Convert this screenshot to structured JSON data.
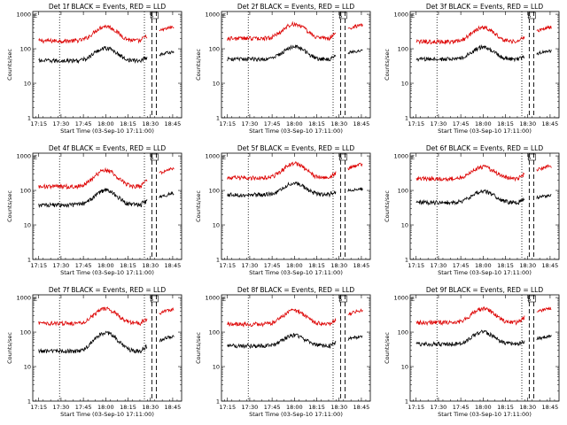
{
  "common": {
    "xlabel": "Start Time (03-Sep-10 17:11:00)",
    "ylabel": "Counts/sec",
    "x_tick_labels": [
      "17:15",
      "17:30",
      "17:45",
      "18:00",
      "18:15",
      "18:30",
      "18:45"
    ],
    "x_tick_minutes": [
      15,
      30,
      45,
      60,
      75,
      90,
      105
    ],
    "y_tick_labels": [
      "1",
      "10",
      "100",
      "1000"
    ],
    "y_tick_values": [
      1,
      10,
      100,
      1000
    ],
    "xlim_minutes": [
      11,
      111
    ],
    "ylim": [
      1,
      1200
    ],
    "y_scale": "log",
    "corner_marks": [
      "E",
      "S"
    ],
    "dotted_lines_minutes": [
      29,
      86
    ],
    "dashed_lines_minutes": [
      91,
      94
    ],
    "colors": {
      "events": "#000000",
      "lld": "#dd0000",
      "axes": "#000000"
    }
  },
  "chart_data": [
    {
      "type": "line",
      "title": "Det 1f BLACK = Events, RED = LLD",
      "series": [
        {
          "key": "lld",
          "color": "#dd0000",
          "base": 170,
          "peak": 450,
          "end": 420
        },
        {
          "key": "events",
          "color": "#000000",
          "base": 45,
          "peak": 105,
          "end": 80
        }
      ]
    },
    {
      "type": "line",
      "title": "Det 2f BLACK = Events, RED = LLD",
      "series": [
        {
          "key": "lld",
          "color": "#dd0000",
          "base": 200,
          "peak": 520,
          "end": 480
        },
        {
          "key": "events",
          "color": "#000000",
          "base": 50,
          "peak": 115,
          "end": 90
        }
      ]
    },
    {
      "type": "line",
      "title": "Det 3f BLACK = Events, RED = LLD",
      "series": [
        {
          "key": "lld",
          "color": "#dd0000",
          "base": 160,
          "peak": 420,
          "end": 420
        },
        {
          "key": "events",
          "color": "#000000",
          "base": 50,
          "peak": 110,
          "end": 85
        }
      ]
    },
    {
      "type": "line",
      "title": "Det 4f BLACK = Events, RED = LLD",
      "series": [
        {
          "key": "lld",
          "color": "#dd0000",
          "base": 130,
          "peak": 380,
          "end": 420
        },
        {
          "key": "events",
          "color": "#000000",
          "base": 38,
          "peak": 100,
          "end": 80
        }
      ]
    },
    {
      "type": "line",
      "title": "Det 5f BLACK = Events, RED = LLD",
      "series": [
        {
          "key": "lld",
          "color": "#dd0000",
          "base": 230,
          "peak": 600,
          "end": 560
        },
        {
          "key": "events",
          "color": "#000000",
          "base": 75,
          "peak": 160,
          "end": 110
        }
      ]
    },
    {
      "type": "line",
      "title": "Det 6f BLACK = Events, RED = LLD",
      "series": [
        {
          "key": "lld",
          "color": "#dd0000",
          "base": 220,
          "peak": 480,
          "end": 500
        },
        {
          "key": "events",
          "color": "#000000",
          "base": 45,
          "peak": 95,
          "end": 70
        }
      ]
    },
    {
      "type": "line",
      "title": "Det 7f BLACK = Events, RED = LLD",
      "series": [
        {
          "key": "lld",
          "color": "#dd0000",
          "base": 180,
          "peak": 470,
          "end": 450
        },
        {
          "key": "events",
          "color": "#000000",
          "base": 28,
          "peak": 95,
          "end": 75
        }
      ]
    },
    {
      "type": "line",
      "title": "Det 8f BLACK = Events, RED = LLD",
      "series": [
        {
          "key": "lld",
          "color": "#dd0000",
          "base": 170,
          "peak": 420,
          "end": 420
        },
        {
          "key": "events",
          "color": "#000000",
          "base": 40,
          "peak": 80,
          "end": 75
        }
      ]
    },
    {
      "type": "line",
      "title": "Det 9f BLACK = Events, RED = LLD",
      "series": [
        {
          "key": "lld",
          "color": "#dd0000",
          "base": 190,
          "peak": 480,
          "end": 500
        },
        {
          "key": "events",
          "color": "#000000",
          "base": 45,
          "peak": 100,
          "end": 75
        }
      ]
    }
  ]
}
